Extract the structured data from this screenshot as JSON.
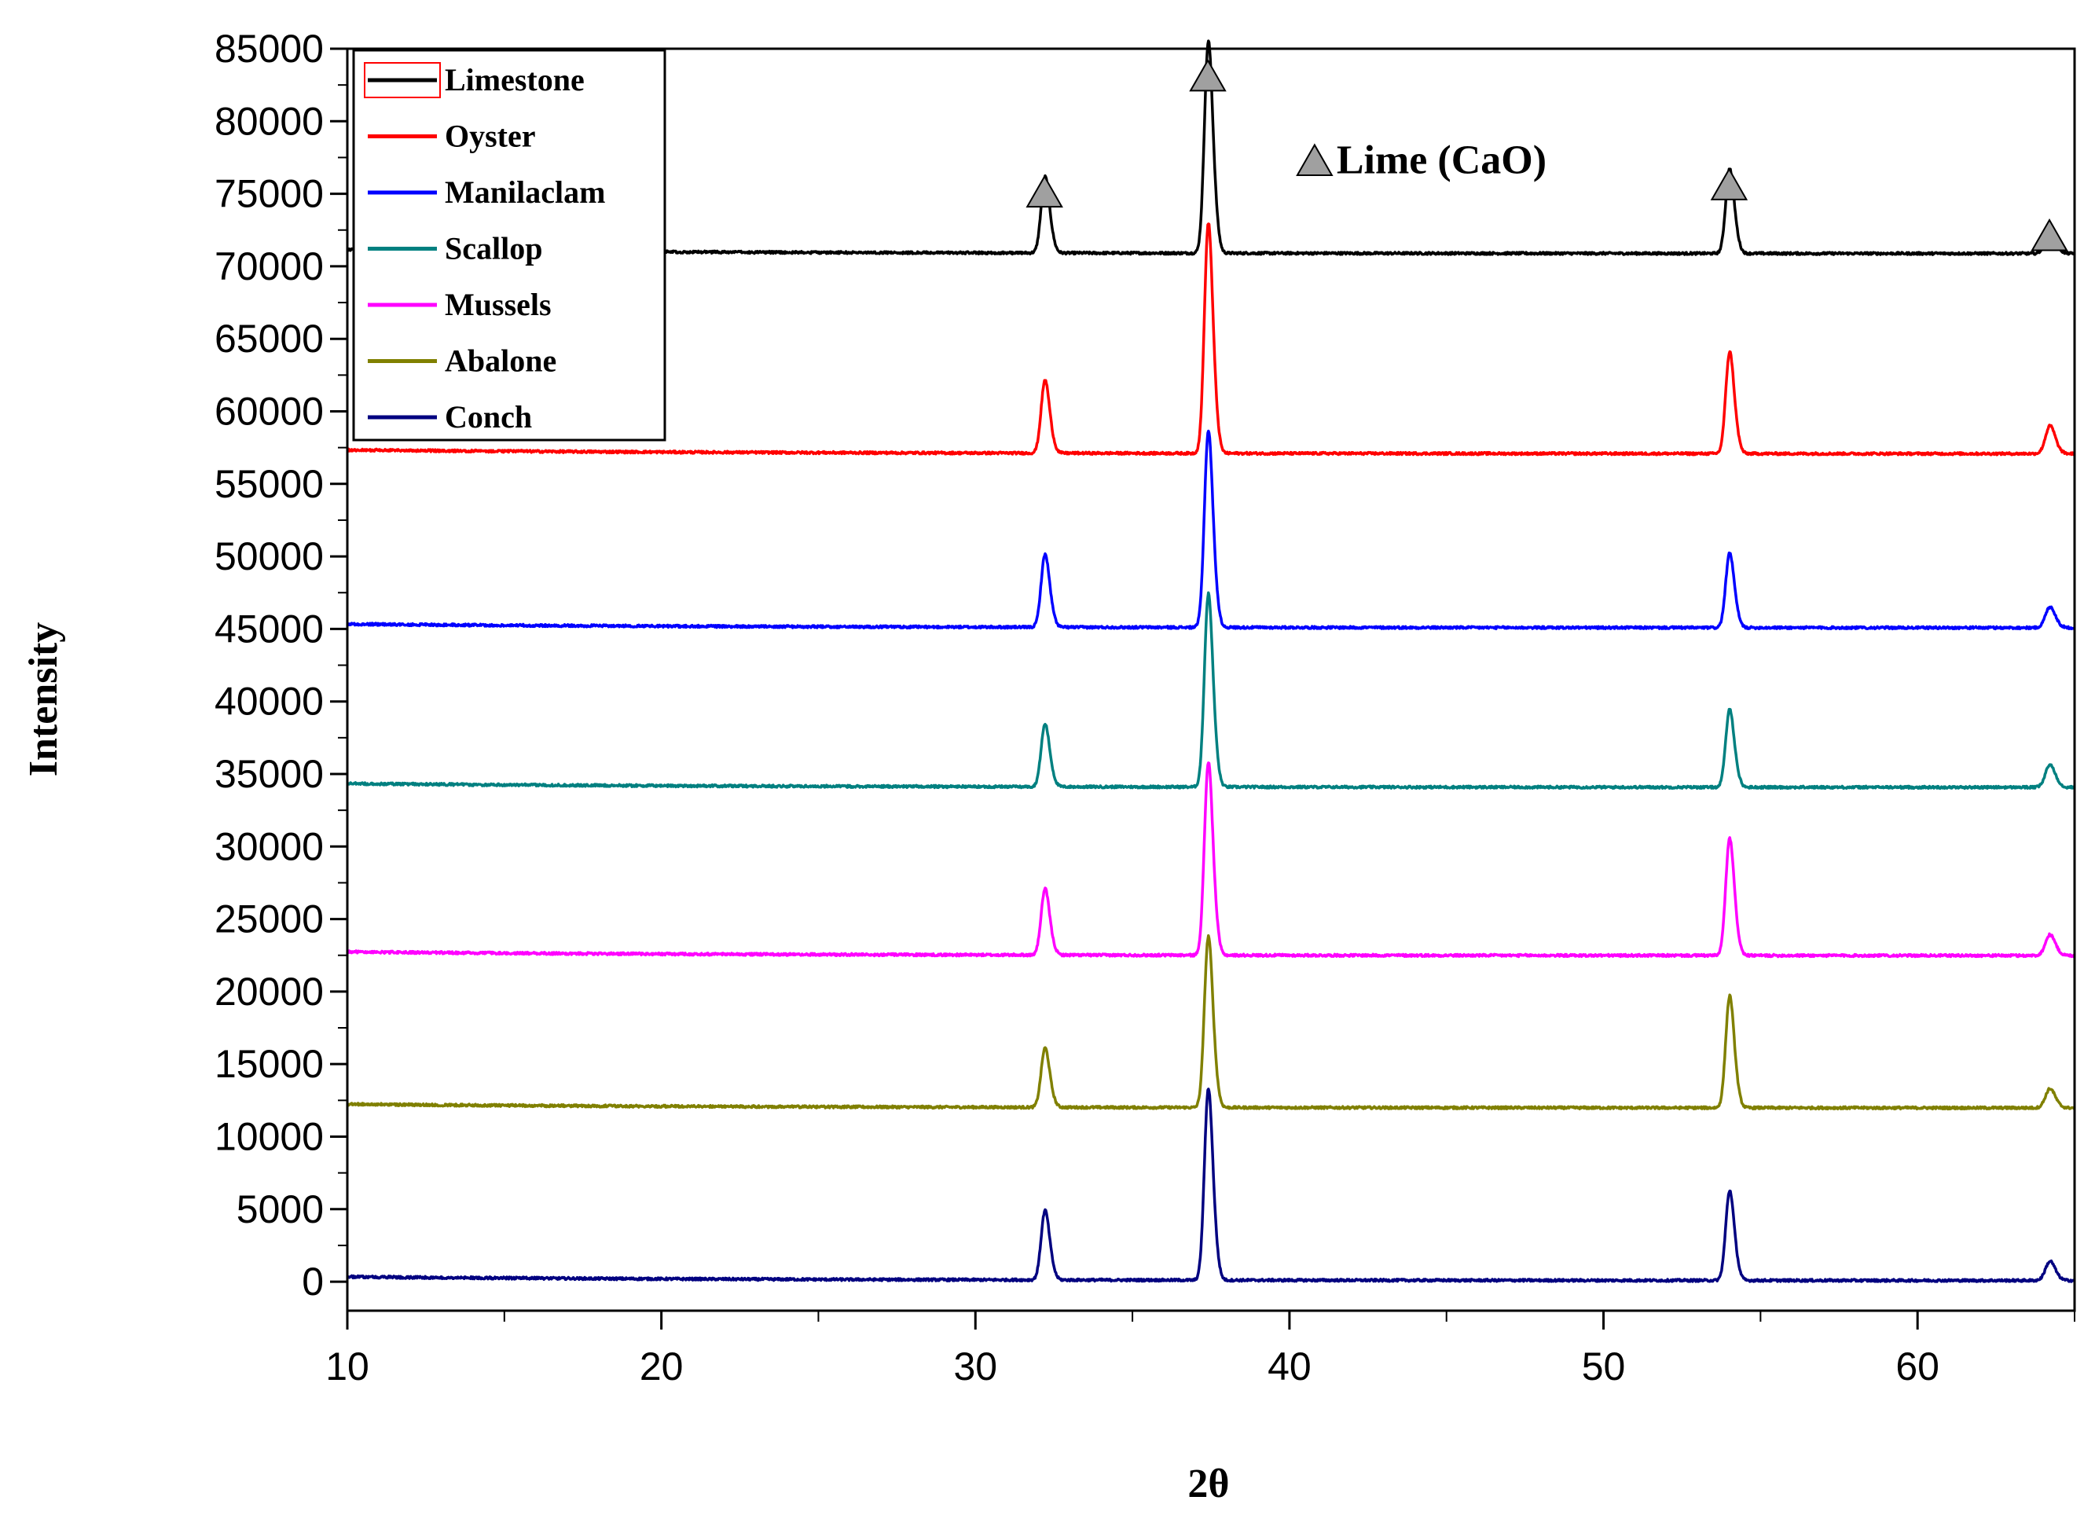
{
  "chart_data": {
    "type": "line",
    "title": "",
    "xlabel": "2θ",
    "ylabel": "Intensity",
    "xlim": [
      10,
      65
    ],
    "ylim": [
      -2000,
      85000
    ],
    "x_ticks": [
      10,
      20,
      30,
      40,
      50,
      60
    ],
    "y_ticks": [
      0,
      5000,
      10000,
      15000,
      20000,
      25000,
      30000,
      35000,
      40000,
      45000,
      50000,
      55000,
      60000,
      65000,
      70000,
      75000,
      80000,
      85000
    ],
    "legend_position": "top-left",
    "peaks_2theta": [
      32.2,
      37.4,
      54.0,
      64.2
    ],
    "peak_widths": [
      0.12,
      0.12,
      0.12,
      0.14
    ],
    "series": [
      {
        "name": "Limestone",
        "color": "#000000",
        "baseline": 71000,
        "peak_heights": [
          75500,
          83500,
          76000,
          72500
        ]
      },
      {
        "name": "Oyster",
        "color": "#ff0000",
        "baseline": 57200,
        "peak_heights": [
          61500,
          70800,
          63200,
          58800
        ]
      },
      {
        "name": "Manilaclam",
        "color": "#0000ff",
        "baseline": 45200,
        "peak_heights": [
          49500,
          56800,
          49600,
          46400
        ]
      },
      {
        "name": "Scallop",
        "color": "#008080",
        "baseline": 34200,
        "peak_heights": [
          37900,
          45600,
          38800,
          35500
        ]
      },
      {
        "name": "Mussels",
        "color": "#ff00ff",
        "baseline": 22600,
        "peak_heights": [
          26500,
          34000,
          29500,
          23800
        ]
      },
      {
        "name": "Abalone",
        "color": "#808000",
        "baseline": 12100,
        "peak_heights": [
          15600,
          22200,
          18700,
          13200
        ]
      },
      {
        "name": "Conch",
        "color": "#000080",
        "baseline": 200,
        "peak_heights": [
          4300,
          11500,
          5500,
          1300
        ]
      }
    ],
    "annotations": {
      "marker": "gray-triangle",
      "marker_color": "#a0a0a0",
      "label": "Lime (CaO)",
      "label_x": 41.5,
      "label_y": 77500,
      "marker_x": 40.8,
      "markers": [
        {
          "x": 32.2,
          "y": 75000
        },
        {
          "x": 37.4,
          "y": 83000
        },
        {
          "x": 54.0,
          "y": 75500
        },
        {
          "x": 64.2,
          "y": 72000
        }
      ]
    }
  }
}
